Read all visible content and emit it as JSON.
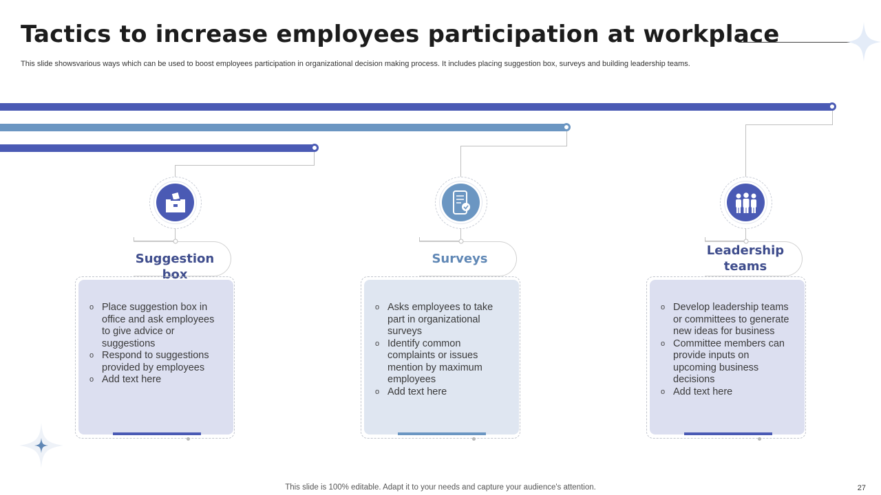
{
  "title": "Tactics to increase employees participation at workplace",
  "subtitle": "This slide showsvarious ways which can be used to boost employees participation in organizational decision making process. It includes placing suggestion box, surveys and building leadership teams.",
  "colors": {
    "dark_blue": "#4a5ab4",
    "steel_blue": "#6b96c2",
    "card_lavender": "#dcdff0",
    "card_light_blue": "#dfe6f1",
    "heading_dark": "#3e4c8c",
    "heading_steel": "#5f87b5"
  },
  "tactics": [
    {
      "icon": "ballot-box-icon",
      "heading": "Suggestion box",
      "bullets": [
        "Place suggestion box in office and ask employees to give advice or suggestions",
        "Respond to suggestions provided by employees",
        "Add text here"
      ]
    },
    {
      "icon": "mobile-survey-icon",
      "heading": "Surveys",
      "bullets": [
        "Asks employees to take part in organizational surveys",
        "Identify common complaints or issues mention by maximum employees",
        "Add text here"
      ]
    },
    {
      "icon": "team-icon",
      "heading": "Leadership teams",
      "bullets": [
        "Develop leadership teams or committees to generate new ideas for business",
        "Committee members can provide inputs on upcoming business decisions",
        "Add text here"
      ]
    }
  ],
  "bullet_marker": "o",
  "footer": "This slide is 100% editable. Adapt it to your needs and capture your audience's attention.",
  "page_number": "27"
}
